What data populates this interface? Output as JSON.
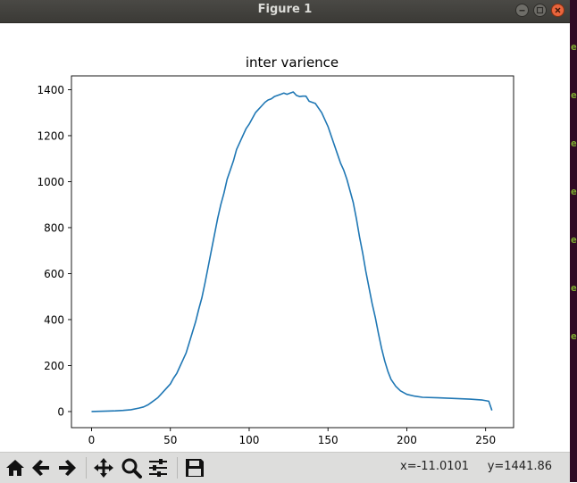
{
  "window": {
    "title": "Figure 1"
  },
  "chart_data": {
    "type": "line",
    "title": "inter varience",
    "xlabel": "",
    "ylabel": "",
    "xlim": [
      -12.75,
      267.75
    ],
    "ylim": [
      -70,
      1460
    ],
    "xticks": [
      0,
      50,
      100,
      150,
      200,
      250
    ],
    "yticks": [
      0,
      200,
      400,
      600,
      800,
      1000,
      1200,
      1400
    ],
    "grid": false,
    "series": [
      {
        "color": "#1f77b4",
        "x": [
          0,
          5,
          10,
          15,
          20,
          25,
          30,
          33,
          36,
          38,
          40,
          42,
          44,
          46,
          48,
          50,
          52,
          54,
          56,
          58,
          60,
          62,
          64,
          66,
          68,
          70,
          72,
          74,
          76,
          78,
          80,
          82,
          84,
          86,
          88,
          90,
          92,
          94,
          96,
          98,
          100,
          102,
          104,
          106,
          108,
          110,
          112,
          114,
          116,
          118,
          120,
          122,
          124,
          126,
          128,
          130,
          132,
          134,
          136,
          138,
          140,
          142,
          144,
          146,
          148,
          150,
          152,
          154,
          156,
          158,
          160,
          162,
          164,
          166,
          168,
          170,
          172,
          174,
          176,
          178,
          180,
          182,
          184,
          186,
          188,
          190,
          193,
          196,
          200,
          205,
          210,
          220,
          230,
          240,
          248,
          252,
          254
        ],
        "y": [
          0,
          1,
          2,
          3,
          5,
          8,
          15,
          20,
          30,
          40,
          50,
          60,
          75,
          90,
          105,
          120,
          145,
          165,
          195,
          225,
          255,
          300,
          345,
          390,
          445,
          495,
          560,
          630,
          700,
          770,
          840,
          900,
          950,
          1010,
          1050,
          1090,
          1140,
          1170,
          1200,
          1230,
          1250,
          1275,
          1300,
          1315,
          1330,
          1345,
          1355,
          1360,
          1370,
          1375,
          1380,
          1385,
          1380,
          1385,
          1390,
          1375,
          1370,
          1372,
          1372,
          1350,
          1345,
          1340,
          1320,
          1300,
          1270,
          1240,
          1200,
          1160,
          1120,
          1080,
          1050,
          1010,
          960,
          910,
          840,
          760,
          690,
          610,
          540,
          470,
          410,
          340,
          275,
          220,
          175,
          140,
          110,
          90,
          75,
          67,
          62,
          60,
          57,
          54,
          50,
          45,
          5
        ]
      }
    ]
  },
  "toolbar": {
    "home": "home-icon",
    "back": "back-arrow-icon",
    "forward": "forward-arrow-icon",
    "pan": "pan-icon",
    "zoom": "zoom-icon",
    "configure": "configure-subplots-icon",
    "save": "save-icon",
    "coords": "x=-11.0101     y=1441.86"
  },
  "background_terminal": {
    "glyphs": [
      "e",
      "e",
      "e",
      "e",
      "e",
      "e",
      "e"
    ],
    "glyph_color": "#7fb030"
  }
}
